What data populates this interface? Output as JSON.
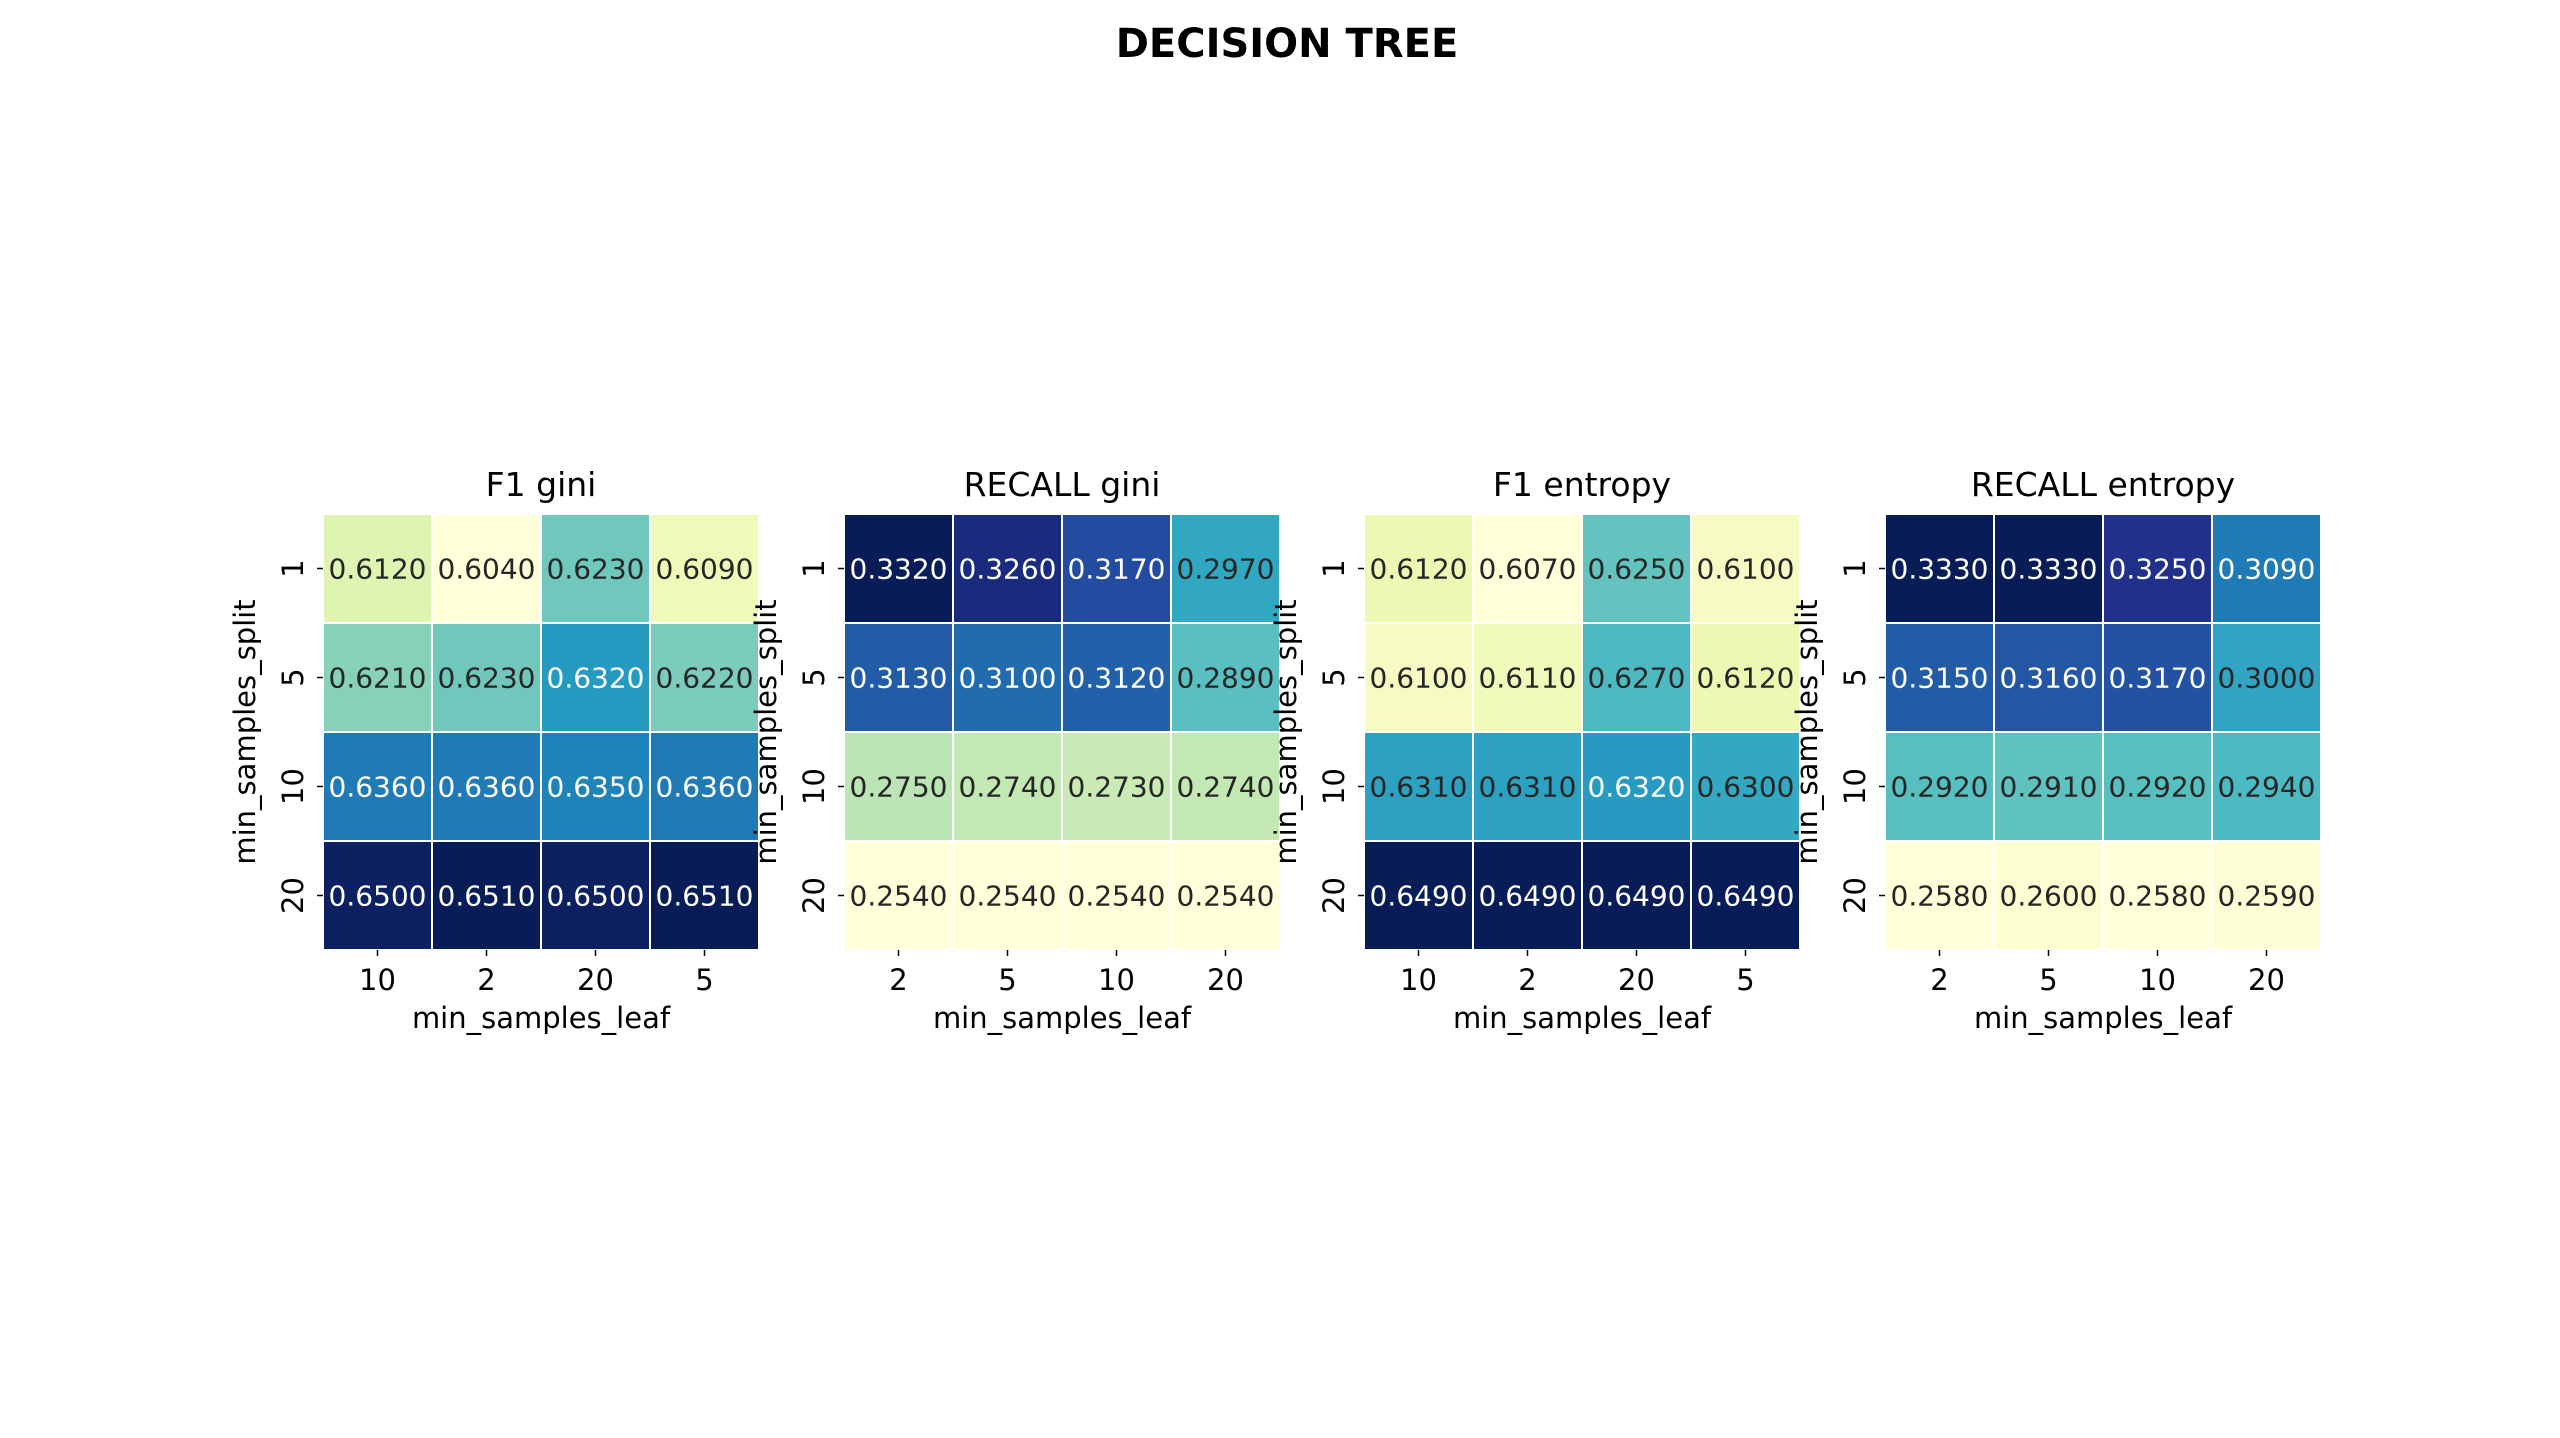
{
  "figure": {
    "title": "DECISION TREE"
  },
  "chart_data": [
    {
      "type": "heatmap",
      "title": "F1 gini",
      "xlabel": "min_samples_leaf",
      "ylabel": "min_samples_split",
      "x_categories": [
        "10",
        "2",
        "20",
        "5"
      ],
      "y_categories": [
        "1",
        "5",
        "10",
        "20"
      ],
      "values": [
        [
          0.612,
          0.604,
          0.623,
          0.609
        ],
        [
          0.621,
          0.623,
          0.632,
          0.622
        ],
        [
          0.636,
          0.636,
          0.635,
          0.636
        ],
        [
          0.65,
          0.651,
          0.65,
          0.651
        ]
      ],
      "labels": [
        [
          "0.6120",
          "0.6040",
          "0.6230",
          "0.6090"
        ],
        [
          "0.6210",
          "0.6230",
          "0.6320",
          "0.6220"
        ],
        [
          "0.6360",
          "0.6360",
          "0.6350",
          "0.6360"
        ],
        [
          "0.6500",
          "0.6510",
          "0.6500",
          "0.6510"
        ]
      ],
      "colormap": "YlGnBu"
    },
    {
      "type": "heatmap",
      "title": "RECALL gini",
      "xlabel": "min_samples_leaf",
      "ylabel": "min_samples_split",
      "x_categories": [
        "2",
        "5",
        "10",
        "20"
      ],
      "y_categories": [
        "1",
        "5",
        "10",
        "20"
      ],
      "values": [
        [
          0.332,
          0.326,
          0.317,
          0.297
        ],
        [
          0.313,
          0.31,
          0.312,
          0.289
        ],
        [
          0.275,
          0.274,
          0.273,
          0.274
        ],
        [
          0.254,
          0.254,
          0.254,
          0.254
        ]
      ],
      "labels": [
        [
          "0.3320",
          "0.3260",
          "0.3170",
          "0.2970"
        ],
        [
          "0.3130",
          "0.3100",
          "0.3120",
          "0.2890"
        ],
        [
          "0.2750",
          "0.2740",
          "0.2730",
          "0.2740"
        ],
        [
          "0.2540",
          "0.2540",
          "0.2540",
          "0.2540"
        ]
      ],
      "colormap": "YlGnBu"
    },
    {
      "type": "heatmap",
      "title": "F1 entropy",
      "xlabel": "min_samples_leaf",
      "ylabel": "min_samples_split",
      "x_categories": [
        "10",
        "2",
        "20",
        "5"
      ],
      "y_categories": [
        "1",
        "5",
        "10",
        "20"
      ],
      "values": [
        [
          0.612,
          0.607,
          0.625,
          0.61
        ],
        [
          0.61,
          0.611,
          0.627,
          0.612
        ],
        [
          0.631,
          0.631,
          0.632,
          0.63
        ],
        [
          0.649,
          0.649,
          0.649,
          0.649
        ]
      ],
      "labels": [
        [
          "0.6120",
          "0.6070",
          "0.6250",
          "0.6100"
        ],
        [
          "0.6100",
          "0.6110",
          "0.6270",
          "0.6120"
        ],
        [
          "0.6310",
          "0.6310",
          "0.6320",
          "0.6300"
        ],
        [
          "0.6490",
          "0.6490",
          "0.6490",
          "0.6490"
        ]
      ],
      "colormap": "YlGnBu"
    },
    {
      "type": "heatmap",
      "title": "RECALL entropy",
      "xlabel": "min_samples_leaf",
      "ylabel": "min_samples_split",
      "x_categories": [
        "2",
        "5",
        "10",
        "20"
      ],
      "y_categories": [
        "1",
        "5",
        "10",
        "20"
      ],
      "values": [
        [
          0.333,
          0.333,
          0.325,
          0.309
        ],
        [
          0.315,
          0.316,
          0.317,
          0.3
        ],
        [
          0.292,
          0.291,
          0.292,
          0.294
        ],
        [
          0.258,
          0.26,
          0.258,
          0.259
        ]
      ],
      "labels": [
        [
          "0.3330",
          "0.3330",
          "0.3250",
          "0.3090"
        ],
        [
          "0.3150",
          "0.3160",
          "0.3170",
          "0.3000"
        ],
        [
          "0.2920",
          "0.2910",
          "0.2920",
          "0.2940"
        ],
        [
          "0.2580",
          "0.2600",
          "0.2580",
          "0.2590"
        ]
      ],
      "colormap": "YlGnBu"
    }
  ]
}
